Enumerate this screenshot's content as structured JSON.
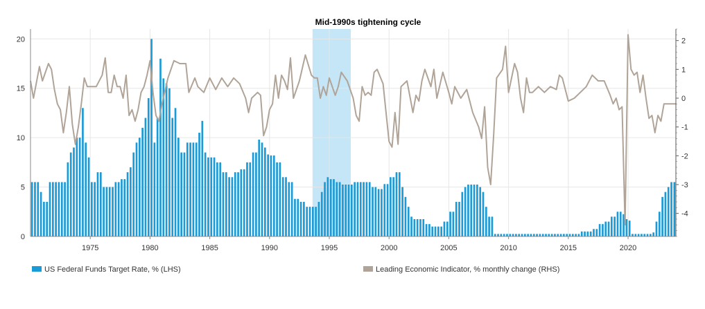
{
  "chart_data": {
    "type": "bar+line",
    "title": "Mid-1990s tightening cycle",
    "x_range": [
      1970,
      2024
    ],
    "x_ticks": [
      1975,
      1980,
      1985,
      1990,
      1995,
      2000,
      2005,
      2010,
      2015,
      2020
    ],
    "y_left": {
      "range": [
        0,
        21
      ],
      "ticks": [
        0,
        5,
        10,
        15,
        20
      ]
    },
    "y_right": {
      "range": [
        -4.8,
        2.4
      ],
      "ticks": [
        -4,
        -3,
        -2,
        -1,
        0,
        1,
        2
      ]
    },
    "highlight": {
      "x_start": 1993.6,
      "x_end": 1996.8,
      "color": "#c5e6f7"
    },
    "grid": true,
    "legend_position": "bottom",
    "series": [
      {
        "name": "US Federal Funds Target Rate, % (LHS)",
        "type": "bar",
        "axis": "left",
        "color": "#1a9ad6",
        "points": [
          [
            1970,
            5.5
          ],
          [
            1970.75,
            4.5
          ],
          [
            1971,
            3.5
          ],
          [
            1971.5,
            5.5
          ],
          [
            1972,
            5.5
          ],
          [
            1972.5,
            5.5
          ],
          [
            1973,
            7.5
          ],
          [
            1973.25,
            8.5
          ],
          [
            1973.5,
            9
          ],
          [
            1973.75,
            10
          ],
          [
            1974,
            10
          ],
          [
            1974.25,
            13
          ],
          [
            1974.5,
            9.5
          ],
          [
            1974.75,
            8
          ],
          [
            1975,
            5.5
          ],
          [
            1975.5,
            6.5
          ],
          [
            1976,
            5
          ],
          [
            1976.5,
            5
          ],
          [
            1977,
            5.5
          ],
          [
            1977.5,
            5.8
          ],
          [
            1978,
            6.5
          ],
          [
            1978.25,
            7
          ],
          [
            1978.5,
            8.5
          ],
          [
            1978.75,
            9.5
          ],
          [
            1979,
            10
          ],
          [
            1979.25,
            11
          ],
          [
            1979.5,
            12
          ],
          [
            1979.75,
            14
          ],
          [
            1980,
            20
          ],
          [
            1980.25,
            9.5
          ],
          [
            1980.5,
            12
          ],
          [
            1980.75,
            18
          ],
          [
            1981,
            16
          ],
          [
            1981.25,
            15.5
          ],
          [
            1981.5,
            15
          ],
          [
            1981.75,
            12
          ],
          [
            1982,
            13
          ],
          [
            1982.25,
            10
          ],
          [
            1982.5,
            8.5
          ],
          [
            1982.75,
            8.5
          ],
          [
            1983,
            9.5
          ],
          [
            1983.5,
            9.5
          ],
          [
            1984,
            10.5
          ],
          [
            1984.25,
            11.7
          ],
          [
            1984.5,
            8.5
          ],
          [
            1984.75,
            8
          ],
          [
            1985,
            8
          ],
          [
            1985.5,
            7.5
          ],
          [
            1986,
            6.5
          ],
          [
            1986.5,
            6
          ],
          [
            1987,
            6.5
          ],
          [
            1987.5,
            6.8
          ],
          [
            1988,
            7.5
          ],
          [
            1988.5,
            8.5
          ],
          [
            1989,
            9.8
          ],
          [
            1989.25,
            9.5
          ],
          [
            1989.5,
            9
          ],
          [
            1989.75,
            8.3
          ],
          [
            1990,
            8.2
          ],
          [
            1990.5,
            7.5
          ],
          [
            1991,
            6
          ],
          [
            1991.5,
            5.5
          ],
          [
            1992,
            3.8
          ],
          [
            1992.5,
            3.5
          ],
          [
            1993,
            3
          ],
          [
            1993.5,
            3
          ],
          [
            1994,
            3.5
          ],
          [
            1994.25,
            4.5
          ],
          [
            1994.5,
            5.5
          ],
          [
            1994.75,
            6
          ],
          [
            1995,
            5.8
          ],
          [
            1995.5,
            5.5
          ],
          [
            1996,
            5.25
          ],
          [
            1996.5,
            5.25
          ],
          [
            1997,
            5.5
          ],
          [
            1997.5,
            5.5
          ],
          [
            1998,
            5.5
          ],
          [
            1998.5,
            5
          ],
          [
            1999,
            4.8
          ],
          [
            1999.5,
            5.3
          ],
          [
            2000,
            6
          ],
          [
            2000.5,
            6.5
          ],
          [
            2001,
            5
          ],
          [
            2001.25,
            4
          ],
          [
            2001.5,
            3
          ],
          [
            2001.75,
            2
          ],
          [
            2002,
            1.75
          ],
          [
            2002.5,
            1.75
          ],
          [
            2003,
            1.25
          ],
          [
            2003.5,
            1
          ],
          [
            2004,
            1
          ],
          [
            2004.5,
            1.5
          ],
          [
            2005,
            2.5
          ],
          [
            2005.5,
            3.5
          ],
          [
            2006,
            4.5
          ],
          [
            2006.25,
            5
          ],
          [
            2006.5,
            5.25
          ],
          [
            2007,
            5.25
          ],
          [
            2007.5,
            5
          ],
          [
            2007.75,
            4.5
          ],
          [
            2008,
            3
          ],
          [
            2008.25,
            2
          ],
          [
            2008.5,
            2
          ],
          [
            2008.75,
            0.25
          ],
          [
            2009,
            0.25
          ],
          [
            2011,
            0.25
          ],
          [
            2013,
            0.25
          ],
          [
            2015.75,
            0.25
          ],
          [
            2016,
            0.5
          ],
          [
            2016.5,
            0.5
          ],
          [
            2017,
            0.75
          ],
          [
            2017.5,
            1.25
          ],
          [
            2018,
            1.5
          ],
          [
            2018.5,
            2
          ],
          [
            2019,
            2.5
          ],
          [
            2019.5,
            2.25
          ],
          [
            2019.75,
            1.75
          ],
          [
            2020,
            1.6
          ],
          [
            2020.25,
            0.25
          ],
          [
            2021.5,
            0.25
          ],
          [
            2022,
            0.4
          ],
          [
            2022.25,
            1.5
          ],
          [
            2022.5,
            2.5
          ],
          [
            2022.75,
            4
          ],
          [
            2023,
            4.5
          ],
          [
            2023.25,
            5
          ],
          [
            2023.5,
            5.5
          ],
          [
            2024,
            5.5
          ]
        ]
      },
      {
        "name": "Leading Economic Indicator, % monthly change (RHS)",
        "type": "line",
        "axis": "right",
        "color": "#b0a397",
        "points": [
          [
            1970,
            0.6
          ],
          [
            1970.25,
            0
          ],
          [
            1970.75,
            1.1
          ],
          [
            1971,
            0.6
          ],
          [
            1971.5,
            1.2
          ],
          [
            1971.75,
            1
          ],
          [
            1972,
            0.3
          ],
          [
            1972.25,
            -0.2
          ],
          [
            1972.5,
            -0.4
          ],
          [
            1972.75,
            -1.2
          ],
          [
            1973,
            -0.5
          ],
          [
            1973.25,
            0.4
          ],
          [
            1973.5,
            -0.9
          ],
          [
            1973.75,
            -1.6
          ],
          [
            1974,
            -1
          ],
          [
            1974.25,
            -0.2
          ],
          [
            1974.5,
            0.7
          ],
          [
            1974.75,
            0.4
          ],
          [
            1975,
            0.4
          ],
          [
            1975.5,
            0.4
          ],
          [
            1976,
            0.8
          ],
          [
            1976.25,
            1.4
          ],
          [
            1976.5,
            0.2
          ],
          [
            1976.75,
            0.2
          ],
          [
            1977,
            0.8
          ],
          [
            1977.25,
            0.4
          ],
          [
            1977.5,
            0.4
          ],
          [
            1977.75,
            0
          ],
          [
            1978,
            0.8
          ],
          [
            1978.25,
            -0.6
          ],
          [
            1978.5,
            -0.4
          ],
          [
            1978.75,
            -0.8
          ],
          [
            1979,
            -0.4
          ],
          [
            1979.25,
            0.2
          ],
          [
            1979.5,
            0.4
          ],
          [
            1979.75,
            0.8
          ],
          [
            1980,
            1.3
          ],
          [
            1980.25,
            0.2
          ],
          [
            1980.5,
            -0.6
          ],
          [
            1980.75,
            -0.8
          ],
          [
            1981,
            -0.2
          ],
          [
            1981.5,
            0.7
          ],
          [
            1982,
            1.3
          ],
          [
            1982.5,
            1.2
          ],
          [
            1983,
            1.2
          ],
          [
            1983.25,
            0.2
          ],
          [
            1983.75,
            0.7
          ],
          [
            1984,
            0.4
          ],
          [
            1984.5,
            0.2
          ],
          [
            1985,
            0.7
          ],
          [
            1985.5,
            0.3
          ],
          [
            1986,
            0.7
          ],
          [
            1986.5,
            0.4
          ],
          [
            1987,
            0.7
          ],
          [
            1987.5,
            0.5
          ],
          [
            1988,
            0
          ],
          [
            1988.25,
            -0.5
          ],
          [
            1988.5,
            0
          ],
          [
            1989,
            0.2
          ],
          [
            1989.25,
            0.1
          ],
          [
            1989.5,
            -1.3
          ],
          [
            1989.75,
            -1
          ],
          [
            1990,
            -0.4
          ],
          [
            1990.25,
            -0.2
          ],
          [
            1990.5,
            0.8
          ],
          [
            1990.75,
            0
          ],
          [
            1991,
            0.8
          ],
          [
            1991.25,
            0.6
          ],
          [
            1991.5,
            0.3
          ],
          [
            1991.75,
            1.4
          ],
          [
            1992,
            0
          ],
          [
            1992.5,
            0.6
          ],
          [
            1993,
            1.5
          ],
          [
            1993.5,
            0.8
          ],
          [
            1993.75,
            0.7
          ],
          [
            1994,
            0.7
          ],
          [
            1994.25,
            0
          ],
          [
            1994.5,
            0.4
          ],
          [
            1994.75,
            0.1
          ],
          [
            1995,
            0.7
          ],
          [
            1995.25,
            0.4
          ],
          [
            1995.5,
            0.1
          ],
          [
            1995.75,
            0.4
          ],
          [
            1996,
            0.9
          ],
          [
            1996.5,
            0.6
          ],
          [
            1997,
            0
          ],
          [
            1997.25,
            -0.6
          ],
          [
            1997.5,
            -0.8
          ],
          [
            1997.75,
            0.4
          ],
          [
            1998,
            0.1
          ],
          [
            1998.25,
            0.2
          ],
          [
            1998.5,
            0.1
          ],
          [
            1998.75,
            0.9
          ],
          [
            1999,
            1
          ],
          [
            1999.5,
            0.5
          ],
          [
            2000,
            -1.5
          ],
          [
            2000.25,
            -1.7
          ],
          [
            2000.5,
            -0.5
          ],
          [
            2000.75,
            -1.6
          ],
          [
            2001,
            0.4
          ],
          [
            2001.5,
            0.6
          ],
          [
            2002,
            -0.5
          ],
          [
            2002.25,
            0.1
          ],
          [
            2002.5,
            -0.1
          ],
          [
            2002.75,
            0.6
          ],
          [
            2003,
            1
          ],
          [
            2003.5,
            0.4
          ],
          [
            2003.75,
            1
          ],
          [
            2004,
            0
          ],
          [
            2004.5,
            0.9
          ],
          [
            2005,
            0.2
          ],
          [
            2005.25,
            -0.2
          ],
          [
            2005.5,
            0.4
          ],
          [
            2006,
            0
          ],
          [
            2006.5,
            0.3
          ],
          [
            2007,
            -0.5
          ],
          [
            2007.5,
            -1
          ],
          [
            2007.75,
            -1.4
          ],
          [
            2008,
            -0.3
          ],
          [
            2008.25,
            -2.4
          ],
          [
            2008.5,
            -3
          ],
          [
            2008.75,
            -1.3
          ],
          [
            2009,
            0.7
          ],
          [
            2009.5,
            1
          ],
          [
            2009.75,
            1.8
          ],
          [
            2010,
            0.2
          ],
          [
            2010.5,
            1.2
          ],
          [
            2010.75,
            0.9
          ],
          [
            2011,
            0
          ],
          [
            2011.25,
            -0.5
          ],
          [
            2011.5,
            0.7
          ],
          [
            2011.75,
            0.2
          ],
          [
            2012,
            0.2
          ],
          [
            2012.5,
            0.4
          ],
          [
            2013,
            0.2
          ],
          [
            2013.5,
            0.4
          ],
          [
            2014,
            0.3
          ],
          [
            2014.25,
            0.8
          ],
          [
            2014.5,
            0.7
          ],
          [
            2014.75,
            0.3
          ],
          [
            2015,
            -0.1
          ],
          [
            2015.5,
            0
          ],
          [
            2016,
            0.2
          ],
          [
            2016.5,
            0.4
          ],
          [
            2017,
            0.8
          ],
          [
            2017.5,
            0.6
          ],
          [
            2018,
            0.6
          ],
          [
            2018.5,
            0.1
          ],
          [
            2018.75,
            -0.2
          ],
          [
            2019,
            0
          ],
          [
            2019.25,
            -0.4
          ],
          [
            2019.5,
            -0.3
          ],
          [
            2019.75,
            -4.4
          ],
          [
            2020,
            2.2
          ],
          [
            2020.25,
            1
          ],
          [
            2020.5,
            0.8
          ],
          [
            2020.75,
            0.9
          ],
          [
            2021,
            0.2
          ],
          [
            2021.25,
            0.8
          ],
          [
            2021.5,
            0
          ],
          [
            2021.75,
            -0.7
          ],
          [
            2022,
            -0.6
          ],
          [
            2022.25,
            -1.2
          ],
          [
            2022.5,
            -0.6
          ],
          [
            2022.75,
            -0.8
          ],
          [
            2023,
            -0.2
          ],
          [
            2023.5,
            -0.2
          ],
          [
            2024,
            -0.2
          ]
        ]
      }
    ]
  }
}
